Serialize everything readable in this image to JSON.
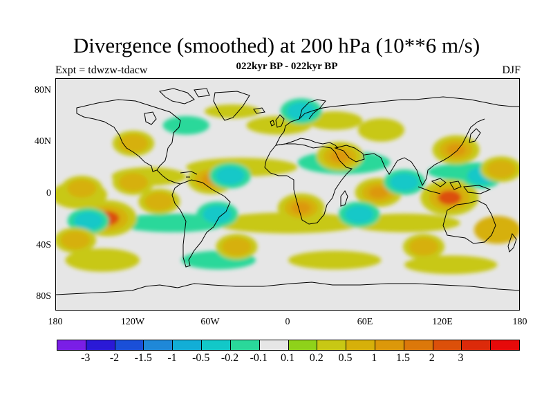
{
  "plot": {
    "title": "Divergence (smoothed) at 200 hPa (10**6 m/s)",
    "subtitle": "022kyr BP - 022kyr BP",
    "experiment": "Expt = tdwzw-tdacw",
    "season": "DJF"
  },
  "axes": {
    "lat_labels": [
      "80N",
      "40N",
      "0",
      "40S",
      "80S"
    ],
    "lon_labels": [
      "180",
      "120W",
      "60W",
      "0",
      "60E",
      "120E",
      "180"
    ]
  },
  "colorbar": {
    "colors": [
      "#7a1ee6",
      "#2a19d6",
      "#1a4fd8",
      "#1f88d8",
      "#12aed6",
      "#12c8c8",
      "#2ad89a",
      "#e6e6e6",
      "#8fd21a",
      "#c8c814",
      "#d6b00a",
      "#dc980a",
      "#dc780a",
      "#dc500a",
      "#dc2a0a",
      "#e60a0a"
    ],
    "labels": [
      "-3",
      "-2",
      "-1.5",
      "-1",
      "-0.5",
      "-0.2",
      "-0.1",
      "0.1",
      "0.2",
      "0.5",
      "1",
      "1.5",
      "2",
      "3"
    ]
  },
  "chart_data": {
    "type": "heatmap",
    "variable": "Divergence (smoothed)",
    "level": "200 hPa",
    "units": "10**6 m/s",
    "x_range": [
      -180,
      180
    ],
    "y_range": [
      -90,
      90
    ],
    "contour_levels": [
      -3,
      -2,
      -1.5,
      -1,
      -0.5,
      -0.2,
      -0.1,
      0.1,
      0.2,
      0.5,
      1,
      1.5,
      2,
      3
    ],
    "features": [
      {
        "lon": -140,
        "lat": -18,
        "value": 2.0
      },
      {
        "lon": -155,
        "lat": -20,
        "value": -0.5
      },
      {
        "lon": -165,
        "lat": -35,
        "value": 0.5
      },
      {
        "lon": -120,
        "lat": 10,
        "value": 0.5
      },
      {
        "lon": -160,
        "lat": 5,
        "value": 0.5
      },
      {
        "lon": -100,
        "lat": -5,
        "value": 0.5
      },
      {
        "lon": -60,
        "lat": 12,
        "value": 1.0
      },
      {
        "lon": -45,
        "lat": 15,
        "value": -0.5
      },
      {
        "lon": -55,
        "lat": -15,
        "value": -0.5
      },
      {
        "lon": -40,
        "lat": -40,
        "value": 0.5
      },
      {
        "lon": 10,
        "lat": -10,
        "value": 1.0
      },
      {
        "lon": 40,
        "lat": 30,
        "value": 1.0
      },
      {
        "lon": 70,
        "lat": 2,
        "value": 1.0
      },
      {
        "lon": 55,
        "lat": -15,
        "value": -0.5
      },
      {
        "lon": 90,
        "lat": 10,
        "value": -0.5
      },
      {
        "lon": 125,
        "lat": -2,
        "value": 2.0
      },
      {
        "lon": 130,
        "lat": 35,
        "value": 1.0
      },
      {
        "lon": 150,
        "lat": 15,
        "value": -0.5
      },
      {
        "lon": 105,
        "lat": -40,
        "value": 0.5
      },
      {
        "lon": 165,
        "lat": 20,
        "value": 0.5
      },
      {
        "lon": -120,
        "lat": 40,
        "value": 0.5
      },
      {
        "lon": 10,
        "lat": 65,
        "value": -0.5
      }
    ]
  }
}
